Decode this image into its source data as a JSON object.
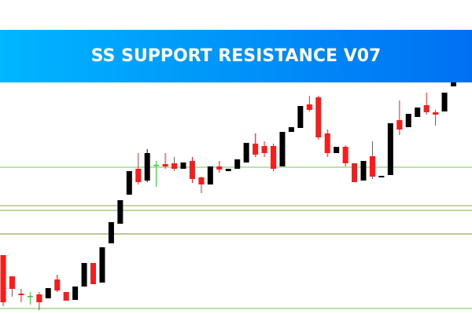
{
  "chart_data": {
    "type": "candlestick",
    "title": "SS SUPPORT RESISTANCE V07",
    "ylim": [
      0,
      400
    ],
    "up_color": "#000000",
    "down_color": "#ff1a1a",
    "doji_color": "#33cc33",
    "open": [
      75,
      48,
      26,
      23,
      25,
      20,
      44,
      28,
      18,
      35,
      65,
      40,
      90,
      115,
      152,
      185,
      170,
      190,
      191,
      192,
      185,
      195,
      174,
      165,
      188,
      182,
      185,
      193,
      217,
      214,
      214,
      188,
      232,
      237,
      267,
      276,
      230,
      205,
      213,
      192,
      170,
      201,
      174,
      177,
      247,
      238,
      251,
      266,
      257,
      258,
      290
    ],
    "high": [
      75,
      48,
      32,
      28,
      28,
      33,
      50,
      28,
      35,
      65,
      65,
      85,
      117,
      145,
      182,
      205,
      210,
      195,
      205,
      200,
      193,
      200,
      175,
      188,
      195,
      185,
      197,
      218,
      230,
      220,
      217,
      232,
      238,
      265,
      278,
      278,
      235,
      213,
      215,
      192,
      195,
      220,
      176,
      243,
      272,
      255,
      263,
      282,
      260,
      282,
      300
    ],
    "low": [
      10,
      22,
      15,
      12,
      5,
      20,
      28,
      17,
      18,
      35,
      38,
      40,
      90,
      115,
      152,
      165,
      168,
      162,
      185,
      182,
      185,
      167,
      154,
      165,
      180,
      182,
      185,
      193,
      200,
      200,
      182,
      188,
      232,
      237,
      258,
      222,
      200,
      205,
      188,
      168,
      170,
      172,
      174,
      177,
      228,
      238,
      251,
      254,
      240,
      258,
      290
    ],
    "close": [
      15,
      32,
      24,
      23,
      15,
      33,
      30,
      17,
      35,
      65,
      38,
      85,
      117,
      145,
      182,
      168,
      205,
      190,
      188,
      185,
      193,
      172,
      165,
      188,
      184,
      185,
      197,
      218,
      203,
      205,
      185,
      232,
      238,
      265,
      260,
      225,
      205,
      213,
      192,
      168,
      195,
      175,
      176,
      243,
      235,
      255,
      263,
      257,
      254,
      282,
      297
    ],
    "levels": [
      {
        "value": 187,
        "color": "#77c455"
      },
      {
        "value": 138,
        "color": "#8fae5a"
      },
      {
        "value": 132,
        "color": "#6fb34a"
      },
      {
        "value": 102,
        "color": "#8a8a3a"
      },
      {
        "value": 7,
        "color": "#77c455"
      }
    ]
  }
}
